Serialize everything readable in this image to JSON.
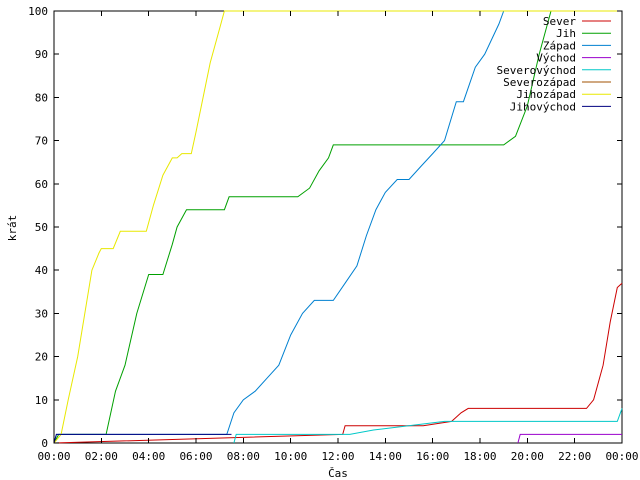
{
  "chart_data": {
    "type": "line",
    "xlabel": "Čas",
    "ylabel": "krát",
    "xlim": [
      0,
      24
    ],
    "ylim": [
      0,
      100
    ],
    "x_ticks": [
      {
        "value": 0,
        "label": "00:00"
      },
      {
        "value": 2,
        "label": "02:00"
      },
      {
        "value": 4,
        "label": "04:00"
      },
      {
        "value": 6,
        "label": "06:00"
      },
      {
        "value": 8,
        "label": "08:00"
      },
      {
        "value": 10,
        "label": "10:00"
      },
      {
        "value": 12,
        "label": "12:00"
      },
      {
        "value": 14,
        "label": "14:00"
      },
      {
        "value": 16,
        "label": "16:00"
      },
      {
        "value": 18,
        "label": "18:00"
      },
      {
        "value": 20,
        "label": "20:00"
      },
      {
        "value": 22,
        "label": "22:00"
      },
      {
        "value": 24,
        "label": "00:00"
      }
    ],
    "y_ticks": [
      0,
      10,
      20,
      30,
      40,
      50,
      60,
      70,
      80,
      90,
      100
    ],
    "grid": false,
    "legend_position": "top-right",
    "series": [
      {
        "name": "Sever",
        "color": "#cc0000",
        "x": [
          0,
          12.2,
          12.3,
          15.6,
          16.8,
          17.2,
          17.5,
          22.5,
          22.8,
          23.2,
          23.5,
          23.8,
          24
        ],
        "y": [
          0,
          2,
          4,
          4,
          5,
          7,
          8,
          8,
          10,
          18,
          28,
          36,
          37
        ]
      },
      {
        "name": "Jih",
        "color": "#00a000",
        "x": [
          0,
          0.2,
          0.3,
          2.2,
          2.6,
          3.0,
          3.5,
          4.0,
          4.6,
          5.0,
          5.2,
          5.6,
          6.0,
          7.2,
          7.4,
          10.3,
          10.8,
          11.2,
          11.6,
          11.8,
          19.0,
          19.5,
          20.0,
          20.5,
          21.0,
          22.0,
          24
        ],
        "y": [
          0,
          2,
          2,
          2,
          12,
          18,
          30,
          39,
          39,
          46,
          50,
          54,
          54,
          54,
          57,
          57,
          59,
          63,
          66,
          69,
          69,
          71,
          78,
          90,
          100,
          100,
          100
        ]
      },
      {
        "name": "Západ",
        "color": "#0080d0",
        "x": [
          0,
          0.1,
          7.3,
          7.6,
          8.0,
          8.5,
          9.0,
          9.5,
          10.0,
          10.5,
          11.0,
          11.8,
          12.3,
          12.8,
          13.2,
          13.6,
          14.0,
          14.5,
          15.0,
          15.5,
          16.0,
          16.5,
          17.0,
          17.3,
          17.8,
          18.2,
          18.8,
          19.0,
          24
        ],
        "y": [
          0,
          2,
          2,
          7,
          10,
          12,
          15,
          18,
          25,
          30,
          33,
          33,
          37,
          41,
          48,
          54,
          58,
          61,
          61,
          64,
          67,
          70,
          79,
          79,
          87,
          90,
          97,
          100,
          100
        ]
      },
      {
        "name": "Východ",
        "color": "#9900cc",
        "x": [
          19.6,
          19.7,
          24
        ],
        "y": [
          0,
          2,
          2
        ]
      },
      {
        "name": "Severovýchod",
        "color": "#00c8c8",
        "x": [
          7.6,
          7.7,
          12.5,
          13.5,
          16.5,
          18.0,
          23.8,
          24
        ],
        "y": [
          0,
          2,
          2,
          3,
          5,
          5,
          5,
          8
        ]
      },
      {
        "name": "Severozápad",
        "color": "#a05000",
        "x": [],
        "y": []
      },
      {
        "name": "Jihozápad",
        "color": "#e8e800",
        "x": [
          0,
          0.3,
          0.6,
          1.0,
          1.3,
          1.6,
          1.9,
          2.0,
          2.5,
          2.8,
          3.2,
          3.9,
          4.2,
          4.6,
          5.0,
          5.2,
          5.4,
          5.8,
          6.0,
          6.3,
          6.6,
          7.0,
          7.2,
          24
        ],
        "y": [
          0,
          2,
          10,
          20,
          30,
          40,
          44,
          45,
          45,
          49,
          49,
          49,
          55,
          62,
          66,
          66,
          67,
          67,
          72,
          80,
          88,
          96,
          100,
          100
        ]
      },
      {
        "name": "Jihovýchod",
        "color": "#000080",
        "x": [
          0,
          0.1,
          7.5
        ],
        "y": [
          0,
          2,
          2
        ]
      }
    ]
  }
}
